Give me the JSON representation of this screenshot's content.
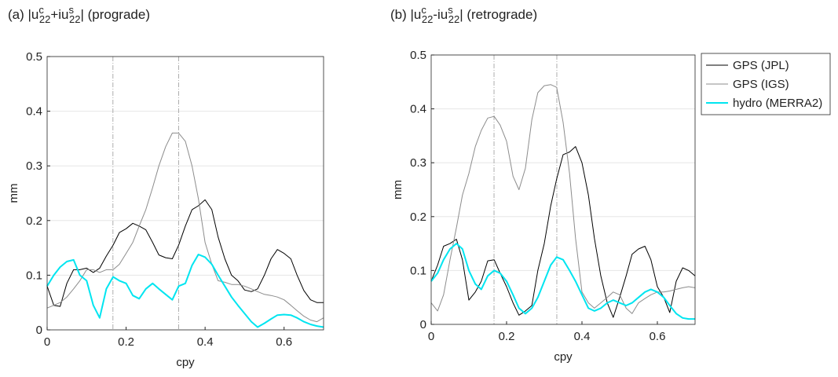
{
  "chart_data": [
    {
      "type": "line",
      "title": [
        {
          "text": "(a) |u"
        },
        {
          "text": "c",
          "script": "sup"
        },
        {
          "text": "22",
          "script": "sub"
        },
        {
          "text": "+iu"
        },
        {
          "text": "s",
          "script": "sup"
        },
        {
          "text": "22",
          "script": "sub"
        },
        {
          "text": "| (prograde)"
        }
      ],
      "xlabel": "cpy",
      "ylabel": "mm",
      "xlim": [
        0,
        0.7
      ],
      "ylim": [
        0,
        0.5
      ],
      "xticks": [
        0,
        0.2,
        0.4,
        0.6
      ],
      "yticks": [
        0,
        0.1,
        0.2,
        0.3,
        0.4,
        0.5
      ],
      "grid": true,
      "vlines": [
        0.1667,
        0.3333
      ],
      "x": [
        0,
        0.017,
        0.033,
        0.05,
        0.067,
        0.083,
        0.1,
        0.117,
        0.133,
        0.15,
        0.167,
        0.183,
        0.2,
        0.217,
        0.233,
        0.25,
        0.267,
        0.283,
        0.3,
        0.317,
        0.333,
        0.35,
        0.367,
        0.383,
        0.4,
        0.417,
        0.433,
        0.45,
        0.467,
        0.483,
        0.5,
        0.517,
        0.533,
        0.55,
        0.567,
        0.583,
        0.6,
        0.617,
        0.633,
        0.65,
        0.667,
        0.683,
        0.7
      ],
      "series": [
        {
          "color": "#000000",
          "width": 1,
          "values": [
            0.08,
            0.045,
            0.043,
            0.085,
            0.11,
            0.11,
            0.113,
            0.105,
            0.113,
            0.135,
            0.155,
            0.178,
            0.185,
            0.195,
            0.19,
            0.183,
            0.16,
            0.137,
            0.132,
            0.13,
            0.155,
            0.19,
            0.22,
            0.227,
            0.238,
            0.22,
            0.17,
            0.13,
            0.1,
            0.09,
            0.073,
            0.07,
            0.075,
            0.1,
            0.13,
            0.147,
            0.14,
            0.13,
            0.1,
            0.072,
            0.055,
            0.05,
            0.05
          ]
        },
        {
          "color": "#8c8c8c",
          "width": 1,
          "values": [
            0.04,
            0.045,
            0.05,
            0.06,
            0.075,
            0.09,
            0.11,
            0.11,
            0.105,
            0.11,
            0.11,
            0.12,
            0.14,
            0.16,
            0.19,
            0.22,
            0.26,
            0.3,
            0.335,
            0.36,
            0.36,
            0.345,
            0.3,
            0.24,
            0.16,
            0.12,
            0.09,
            0.087,
            0.083,
            0.083,
            0.08,
            0.075,
            0.07,
            0.065,
            0.063,
            0.06,
            0.055,
            0.045,
            0.035,
            0.025,
            0.018,
            0.015,
            0.022
          ]
        },
        {
          "color": "#00e5f0",
          "width": 2,
          "values": [
            0.08,
            0.1,
            0.115,
            0.125,
            0.128,
            0.1,
            0.09,
            0.045,
            0.022,
            0.075,
            0.097,
            0.09,
            0.085,
            0.063,
            0.057,
            0.075,
            0.085,
            0.075,
            0.065,
            0.055,
            0.08,
            0.085,
            0.118,
            0.138,
            0.133,
            0.12,
            0.1,
            0.08,
            0.06,
            0.045,
            0.03,
            0.015,
            0.005,
            0.012,
            0.02,
            0.027,
            0.028,
            0.027,
            0.022,
            0.015,
            0.01,
            0.007,
            0.005
          ]
        }
      ]
    },
    {
      "type": "line",
      "title": [
        {
          "text": "(b) |u"
        },
        {
          "text": "c",
          "script": "sup"
        },
        {
          "text": "22",
          "script": "sub"
        },
        {
          "text": "-iu"
        },
        {
          "text": "s",
          "script": "sup"
        },
        {
          "text": "22",
          "script": "sub"
        },
        {
          "text": "| (retrograde)"
        }
      ],
      "xlabel": "cpy",
      "ylabel": "mm",
      "xlim": [
        0,
        0.7
      ],
      "ylim": [
        0,
        0.5
      ],
      "xticks": [
        0,
        0.2,
        0.4,
        0.6
      ],
      "yticks": [
        0,
        0.1,
        0.2,
        0.3,
        0.4,
        0.5
      ],
      "grid": true,
      "vlines": [
        0.1667,
        0.3333
      ],
      "legend": "outside-right",
      "x": [
        0,
        0.017,
        0.033,
        0.05,
        0.067,
        0.083,
        0.1,
        0.117,
        0.133,
        0.15,
        0.167,
        0.183,
        0.2,
        0.217,
        0.233,
        0.25,
        0.267,
        0.283,
        0.3,
        0.317,
        0.333,
        0.35,
        0.367,
        0.383,
        0.4,
        0.417,
        0.433,
        0.45,
        0.467,
        0.483,
        0.5,
        0.517,
        0.533,
        0.55,
        0.567,
        0.583,
        0.6,
        0.617,
        0.633,
        0.65,
        0.667,
        0.683,
        0.7
      ],
      "series": [
        {
          "name": "GPS (JPL)",
          "color": "#000000",
          "width": 1,
          "values": [
            0.08,
            0.11,
            0.145,
            0.15,
            0.158,
            0.12,
            0.045,
            0.06,
            0.08,
            0.118,
            0.12,
            0.095,
            0.07,
            0.04,
            0.017,
            0.025,
            0.035,
            0.1,
            0.15,
            0.22,
            0.27,
            0.315,
            0.32,
            0.33,
            0.3,
            0.24,
            0.16,
            0.09,
            0.04,
            0.013,
            0.05,
            0.09,
            0.13,
            0.14,
            0.145,
            0.12,
            0.07,
            0.05,
            0.022,
            0.08,
            0.105,
            0.1,
            0.09
          ]
        },
        {
          "name": "GPS (IGS)",
          "color": "#8c8c8c",
          "width": 1,
          "values": [
            0.04,
            0.025,
            0.055,
            0.12,
            0.18,
            0.24,
            0.28,
            0.33,
            0.36,
            0.383,
            0.386,
            0.37,
            0.34,
            0.275,
            0.25,
            0.29,
            0.38,
            0.43,
            0.443,
            0.445,
            0.44,
            0.375,
            0.28,
            0.16,
            0.06,
            0.04,
            0.03,
            0.04,
            0.05,
            0.06,
            0.055,
            0.03,
            0.02,
            0.04,
            0.048,
            0.055,
            0.06,
            0.06,
            0.062,
            0.065,
            0.068,
            0.07,
            0.068
          ]
        },
        {
          "name": "hydro (MERRA2)",
          "color": "#00e5f0",
          "width": 2,
          "values": [
            0.08,
            0.095,
            0.12,
            0.14,
            0.15,
            0.14,
            0.1,
            0.075,
            0.065,
            0.09,
            0.1,
            0.095,
            0.08,
            0.055,
            0.03,
            0.02,
            0.03,
            0.05,
            0.08,
            0.11,
            0.125,
            0.12,
            0.1,
            0.08,
            0.055,
            0.03,
            0.025,
            0.03,
            0.04,
            0.045,
            0.04,
            0.035,
            0.04,
            0.05,
            0.06,
            0.065,
            0.06,
            0.05,
            0.035,
            0.02,
            0.012,
            0.01,
            0.01
          ]
        }
      ]
    }
  ]
}
